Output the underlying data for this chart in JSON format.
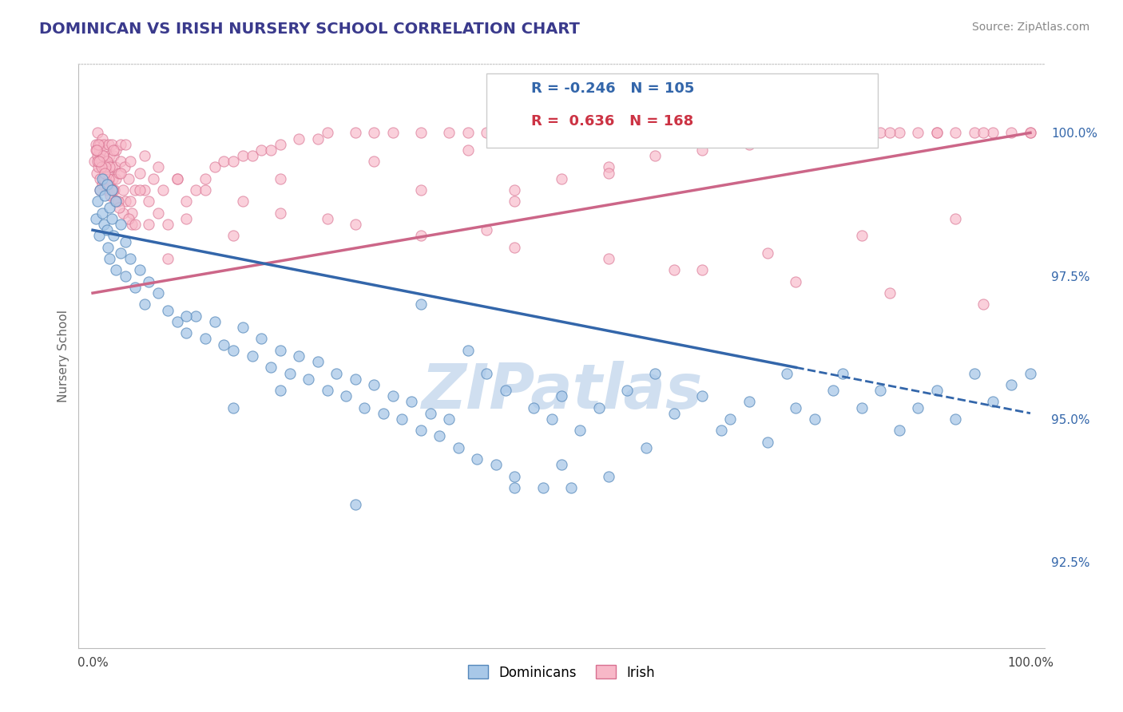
{
  "title": "DOMINICAN VS IRISH NURSERY SCHOOL CORRELATION CHART",
  "source": "Source: ZipAtlas.com",
  "ylabel": "Nursery School",
  "xaxis_label_dominicans": "Dominicans",
  "xaxis_label_irish": "Irish",
  "r_dominican": -0.246,
  "n_dominican": 105,
  "r_irish": 0.636,
  "n_irish": 168,
  "color_dominican_fill": "#a8c8e8",
  "color_dominican_edge": "#5588bb",
  "color_irish_fill": "#f8b8c8",
  "color_irish_edge": "#d87090",
  "color_dominican_line": "#3366aa",
  "color_irish_line": "#cc6688",
  "title_color": "#3a3a8c",
  "ylabel_color": "#666666",
  "right_axis_color": "#3366aa",
  "background_color": "#ffffff",
  "grid_color": "#e0e0e0",
  "watermark_color": "#d0dff0",
  "ylim_bottom": 91.0,
  "ylim_top": 101.2,
  "xlim_left": -1.5,
  "xlim_right": 101.5,
  "yticks": [
    92.5,
    95.0,
    97.5,
    100.0
  ],
  "ytick_labels": [
    "92.5%",
    "95.0%",
    "97.5%",
    "100.0%"
  ],
  "dominican_trend_x0": 0,
  "dominican_trend_y0": 98.3,
  "dominican_trend_x1": 100,
  "dominican_trend_y1": 95.1,
  "dominican_dash_start": 75,
  "irish_trend_x0": 0,
  "irish_trend_y0": 97.2,
  "irish_trend_x1": 100,
  "irish_trend_y1": 100.0,
  "dominican_x": [
    0.3,
    0.5,
    0.7,
    0.8,
    1.0,
    1.0,
    1.2,
    1.3,
    1.5,
    1.5,
    1.6,
    1.8,
    1.8,
    2.0,
    2.0,
    2.2,
    2.5,
    2.5,
    3.0,
    3.0,
    3.5,
    3.5,
    4.0,
    4.5,
    5.0,
    5.5,
    6.0,
    7.0,
    8.0,
    9.0,
    10.0,
    11.0,
    12.0,
    13.0,
    14.0,
    15.0,
    16.0,
    17.0,
    18.0,
    19.0,
    20.0,
    21.0,
    22.0,
    23.0,
    24.0,
    25.0,
    26.0,
    27.0,
    28.0,
    29.0,
    30.0,
    31.0,
    32.0,
    33.0,
    34.0,
    35.0,
    36.0,
    37.0,
    38.0,
    39.0,
    40.0,
    41.0,
    42.0,
    43.0,
    44.0,
    45.0,
    47.0,
    48.0,
    49.0,
    50.0,
    52.0,
    54.0,
    55.0,
    57.0,
    59.0,
    60.0,
    62.0,
    65.0,
    67.0,
    68.0,
    70.0,
    72.0,
    74.0,
    75.0,
    77.0,
    79.0,
    80.0,
    82.0,
    84.0,
    86.0,
    88.0,
    90.0,
    92.0,
    94.0,
    96.0,
    98.0,
    100.0,
    50.0,
    51.0,
    35.0,
    28.0,
    45.0,
    20.0,
    15.0,
    10.0
  ],
  "dominican_y": [
    98.5,
    98.8,
    98.2,
    99.0,
    98.6,
    99.2,
    98.4,
    98.9,
    98.3,
    99.1,
    98.0,
    98.7,
    97.8,
    98.5,
    99.0,
    98.2,
    98.8,
    97.6,
    98.4,
    97.9,
    98.1,
    97.5,
    97.8,
    97.3,
    97.6,
    97.0,
    97.4,
    97.2,
    96.9,
    96.7,
    96.5,
    96.8,
    96.4,
    96.7,
    96.3,
    96.2,
    96.6,
    96.1,
    96.4,
    95.9,
    96.2,
    95.8,
    96.1,
    95.7,
    96.0,
    95.5,
    95.8,
    95.4,
    95.7,
    95.2,
    95.6,
    95.1,
    95.4,
    95.0,
    95.3,
    94.8,
    95.1,
    94.7,
    95.0,
    94.5,
    96.2,
    94.3,
    95.8,
    94.2,
    95.5,
    94.0,
    95.2,
    93.8,
    95.0,
    95.4,
    94.8,
    95.2,
    94.0,
    95.5,
    94.5,
    95.8,
    95.1,
    95.4,
    94.8,
    95.0,
    95.3,
    94.6,
    95.8,
    95.2,
    95.0,
    95.5,
    95.8,
    95.2,
    95.5,
    94.8,
    95.2,
    95.5,
    95.0,
    95.8,
    95.3,
    95.6,
    95.8,
    94.2,
    93.8,
    97.0,
    93.5,
    93.8,
    95.5,
    95.2,
    96.8
  ],
  "irish_x": [
    0.2,
    0.3,
    0.4,
    0.5,
    0.5,
    0.6,
    0.7,
    0.8,
    0.8,
    0.9,
    1.0,
    1.0,
    1.1,
    1.2,
    1.2,
    1.3,
    1.4,
    1.5,
    1.5,
    1.6,
    1.7,
    1.8,
    1.8,
    1.9,
    2.0,
    2.0,
    2.1,
    2.2,
    2.3,
    2.4,
    2.5,
    2.5,
    2.6,
    2.8,
    3.0,
    3.0,
    3.2,
    3.4,
    3.5,
    3.8,
    4.0,
    4.2,
    4.5,
    5.0,
    5.5,
    6.0,
    6.5,
    7.0,
    7.5,
    8.0,
    9.0,
    10.0,
    11.0,
    12.0,
    13.0,
    14.0,
    15.0,
    16.0,
    17.0,
    18.0,
    19.0,
    20.0,
    22.0,
    24.0,
    25.0,
    28.0,
    30.0,
    32.0,
    35.0,
    38.0,
    40.0,
    42.0,
    44.0,
    45.0,
    48.0,
    50.0,
    52.0,
    55.0,
    58.0,
    60.0,
    62.0,
    65.0,
    68.0,
    70.0,
    72.0,
    75.0,
    78.0,
    80.0,
    82.0,
    84.0,
    86.0,
    88.0,
    90.0,
    92.0,
    94.0,
    96.0,
    98.0,
    100.0,
    45.0,
    50.0,
    55.0,
    60.0,
    65.0,
    70.0,
    75.0,
    80.0,
    85.0,
    90.0,
    95.0,
    100.0,
    30.0,
    20.0,
    40.0,
    10.0,
    55.0,
    45.0,
    35.0,
    5.0,
    3.0,
    2.5,
    0.5,
    0.8,
    1.5,
    1.2,
    2.2,
    1.8,
    3.5,
    0.3,
    6.0,
    4.0,
    8.0,
    25.0,
    15.0,
    42.0,
    62.0,
    72.0,
    82.0,
    92.0,
    5.5,
    7.0,
    9.0,
    12.0,
    16.0,
    20.0,
    28.0,
    35.0,
    45.0,
    55.0,
    65.0,
    75.0,
    85.0,
    95.0,
    0.6,
    1.1,
    1.4,
    1.7,
    2.1,
    2.7,
    3.2,
    4.2,
    0.9,
    1.6,
    2.4,
    3.8,
    0.4,
    0.7,
    1.3,
    2.0,
    2.8,
    4.5
  ],
  "irish_y": [
    99.5,
    99.8,
    99.3,
    99.6,
    100.0,
    99.4,
    99.7,
    99.2,
    99.8,
    99.5,
    99.9,
    99.1,
    99.6,
    99.4,
    99.8,
    99.2,
    99.7,
    99.0,
    99.5,
    99.3,
    99.8,
    99.1,
    99.6,
    98.9,
    99.4,
    99.8,
    99.2,
    99.6,
    99.0,
    99.4,
    99.2,
    99.7,
    98.8,
    99.3,
    99.5,
    99.8,
    99.0,
    99.4,
    98.8,
    99.2,
    99.5,
    98.6,
    99.0,
    99.3,
    99.0,
    98.8,
    99.2,
    98.6,
    99.0,
    98.4,
    99.2,
    98.8,
    99.0,
    99.2,
    99.4,
    99.5,
    99.5,
    99.6,
    99.6,
    99.7,
    99.7,
    99.8,
    99.9,
    99.9,
    100.0,
    100.0,
    100.0,
    100.0,
    100.0,
    100.0,
    100.0,
    100.0,
    100.0,
    100.0,
    100.0,
    100.0,
    100.0,
    100.0,
    100.0,
    100.0,
    100.0,
    100.0,
    100.0,
    100.0,
    100.0,
    100.0,
    100.0,
    100.0,
    100.0,
    100.0,
    100.0,
    100.0,
    100.0,
    100.0,
    100.0,
    100.0,
    100.0,
    100.0,
    99.0,
    99.2,
    99.4,
    99.6,
    99.7,
    99.8,
    99.9,
    100.0,
    100.0,
    100.0,
    100.0,
    100.0,
    99.5,
    99.2,
    99.7,
    98.5,
    99.3,
    98.8,
    99.0,
    99.0,
    99.3,
    98.8,
    99.5,
    99.0,
    99.5,
    99.2,
    99.7,
    99.4,
    99.8,
    99.7,
    98.4,
    98.8,
    97.8,
    98.5,
    98.2,
    98.3,
    97.6,
    97.9,
    98.2,
    98.5,
    99.6,
    99.4,
    99.2,
    99.0,
    98.8,
    98.6,
    98.4,
    98.2,
    98.0,
    97.8,
    97.6,
    97.4,
    97.2,
    97.0,
    99.8,
    99.6,
    99.4,
    99.2,
    99.0,
    98.8,
    98.6,
    98.4,
    99.4,
    99.1,
    98.8,
    98.5,
    99.7,
    99.5,
    99.3,
    99.0,
    98.7,
    98.4
  ]
}
